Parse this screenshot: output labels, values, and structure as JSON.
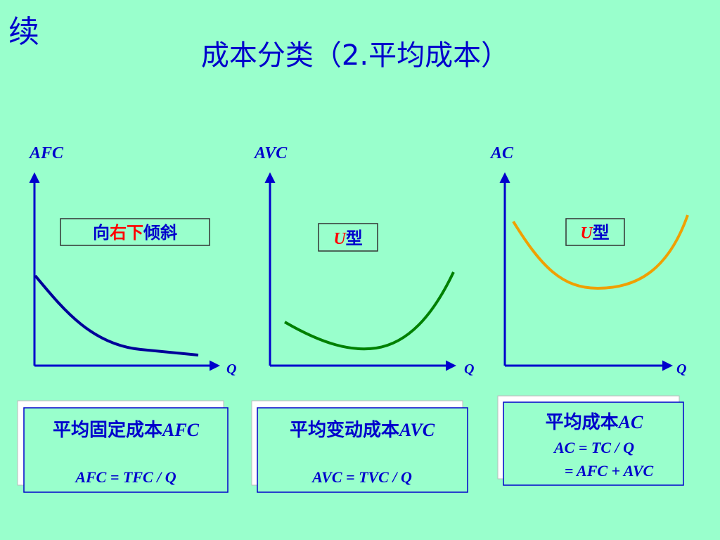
{
  "header": {
    "mark": "续",
    "title": "成本分类（2.平均成本）"
  },
  "panels": [
    {
      "y_label": "AFC",
      "x_label": "Q",
      "tag": [
        "向",
        "右下",
        "倾斜"
      ],
      "box_title": [
        "平均固定成本",
        "AFC"
      ],
      "formulas": [
        "AFC = TFC / Q"
      ]
    },
    {
      "y_label": "AVC",
      "x_label": "Q",
      "tag": [
        "U",
        "型"
      ],
      "box_title": [
        "平均变动成本",
        "AVC"
      ],
      "formulas": [
        "AVC = TVC / Q"
      ]
    },
    {
      "y_label": "AC",
      "x_label": "Q",
      "tag": [
        "U",
        "型"
      ],
      "box_title": [
        "平均成本",
        "AC"
      ],
      "formulas": [
        "AC = TC / Q",
        "= AFC + AVC"
      ]
    }
  ]
}
